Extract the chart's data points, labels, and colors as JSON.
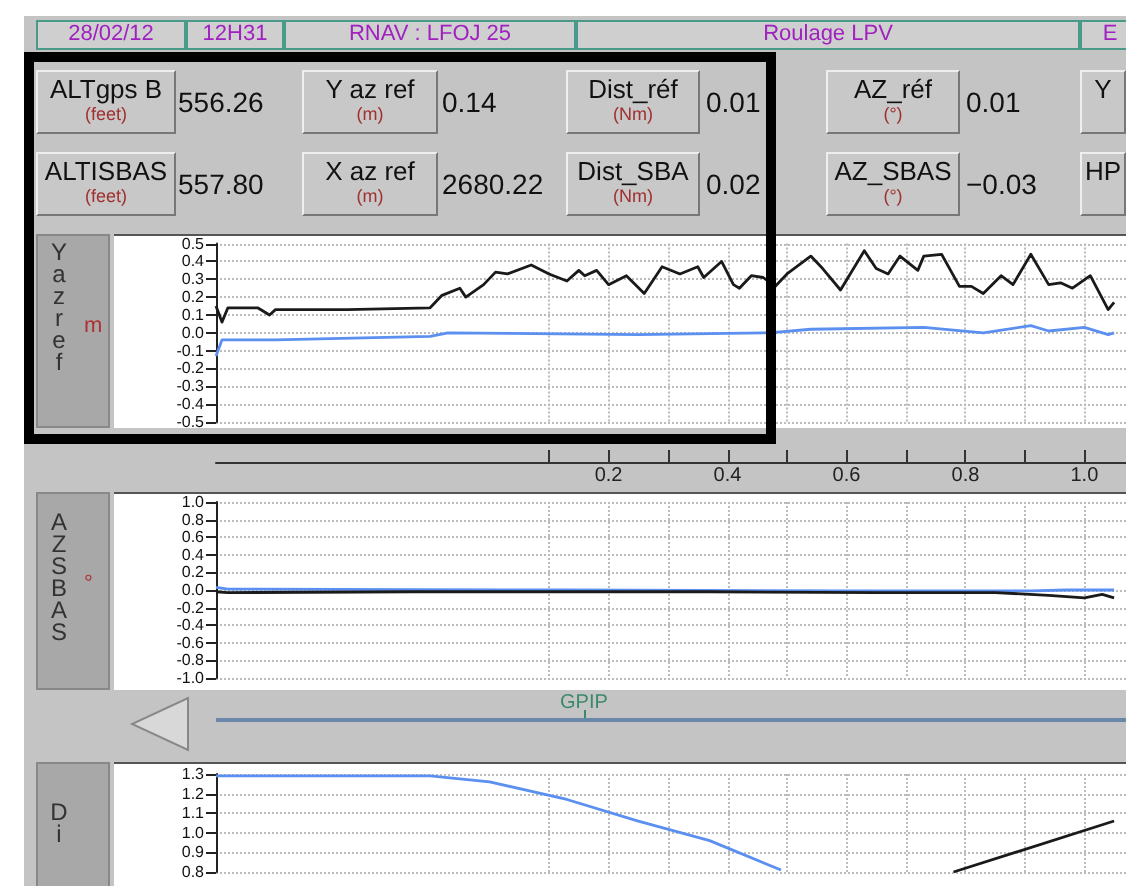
{
  "chart_data": [
    {
      "type": "other",
      "annotations": [
        "28/02/12",
        "12H31",
        "RNAV : LFOJ 25",
        "Roulage LPV",
        "E",
        "ALTgps B",
        "(feet)",
        "556.26",
        "Y az ref",
        "(m)",
        "0.14",
        "Dist_réf",
        "(Nm)",
        "0.01",
        "AZ_réf",
        "(°)",
        "0.01",
        "Y",
        "ALTISBAS",
        "(feet)",
        "557.80",
        "X az ref",
        "(m)",
        "2680.22",
        "Dist_SBA",
        "(Nm)",
        "0.02",
        "AZ_SBAS",
        "(°)",
        "−0.03",
        "HP"
      ]
    },
    {
      "type": "line",
      "ylabel": "Y az ref",
      "annotations": [
        "m"
      ],
      "xlim": [
        -0.46,
        1.07
      ],
      "ylim": [
        -0.5,
        0.5
      ],
      "grid": true,
      "xticks": [
        {
          "value": 0.1,
          "label": null
        },
        0.2,
        {
          "value": 0.3,
          "label": null
        },
        0.4,
        {
          "value": 0.5,
          "label": null
        },
        0.6,
        {
          "value": 0.7,
          "label": null
        },
        0.8,
        {
          "value": 0.9,
          "label": null
        },
        {
          "value": 1,
          "label": "1.0"
        }
      ],
      "yticks": [
        -0.5,
        -0.4,
        -0.3,
        -0.2,
        -0.1,
        {
          "value": 0,
          "label": "0.0"
        },
        0.1,
        0.2,
        0.3,
        0.4,
        0.5
      ],
      "series": [
        {
          "color": "#1a1a1a",
          "x": [
            -0.46,
            -0.45,
            -0.44,
            -0.39,
            -0.37,
            -0.36,
            -0.24,
            -0.1,
            -0.08,
            -0.05,
            -0.04,
            -0.01,
            0.01,
            0.03,
            0.07,
            0.1,
            0.13,
            0.15,
            0.16,
            0.18,
            0.2,
            0.23,
            0.26,
            0.29,
            0.32,
            0.35,
            0.36,
            0.39,
            0.41,
            0.42,
            0.44,
            0.46,
            0.48,
            0.5,
            0.54,
            0.56,
            0.59,
            0.63,
            0.65,
            0.67,
            0.69,
            0.72,
            0.73,
            0.76,
            0.79,
            0.81,
            0.83,
            0.86,
            0.88,
            0.91,
            0.94,
            0.96,
            0.98,
            1.01,
            1.04,
            1.05
          ],
          "values": [
            0.15,
            0.06,
            0.14,
            0.14,
            0.1,
            0.13,
            0.13,
            0.14,
            0.21,
            0.25,
            0.2,
            0.27,
            0.34,
            0.33,
            0.38,
            0.33,
            0.29,
            0.35,
            0.32,
            0.35,
            0.27,
            0.32,
            0.22,
            0.37,
            0.33,
            0.37,
            0.31,
            0.4,
            0.27,
            0.25,
            0.32,
            0.31,
            0.26,
            0.33,
            0.43,
            0.36,
            0.24,
            0.46,
            0.36,
            0.33,
            0.43,
            0.35,
            0.43,
            0.44,
            0.26,
            0.26,
            0.22,
            0.32,
            0.27,
            0.44,
            0.27,
            0.28,
            0.25,
            0.32,
            0.13,
            0.17
          ]
        },
        {
          "color": "#5b8ff0",
          "x": [
            -0.46,
            -0.45,
            -0.36,
            -0.1,
            -0.07,
            0.25,
            0.47,
            0.54,
            0.73,
            0.83,
            0.91,
            0.94,
            1.0,
            1.04,
            1.05
          ],
          "values": [
            -0.13,
            -0.04,
            -0.04,
            -0.02,
            0.0,
            -0.01,
            0.0,
            0.02,
            0.03,
            0.0,
            0.04,
            0.01,
            0.03,
            -0.01,
            0.0
          ]
        }
      ]
    },
    {
      "type": "line",
      "ylabel": "AZ SBAS",
      "annotations": [
        "°",
        "GPIP"
      ],
      "xlim": [
        -0.46,
        1.07
      ],
      "ylim": [
        -1,
        1
      ],
      "grid": true,
      "tick_labels": "y",
      "xticks": [
        0.1,
        0.2,
        0.3,
        0.4,
        0.5,
        0.6,
        0.7,
        0.8,
        0.9,
        1
      ],
      "yticks": [
        {
          "value": -1,
          "label": "-1.0"
        },
        -0.8,
        -0.6,
        -0.4,
        -0.2,
        {
          "value": 0,
          "label": "0.0"
        },
        0.2,
        0.4,
        0.6,
        0.8,
        {
          "value": 1,
          "label": "1.0"
        }
      ],
      "series": [
        {
          "color": "#5b8ff0",
          "x": [
            -0.46,
            -0.44,
            0.13,
            0.61,
            0.91,
            0.97,
            1.05
          ],
          "values": [
            0.03,
            0.01,
            0.0,
            -0.01,
            -0.01,
            0.0,
            0.0
          ]
        },
        {
          "color": "#1a1a1a",
          "x": [
            -0.46,
            -0.44,
            -0.13,
            0.37,
            0.65,
            0.85,
            0.94,
            1.0,
            1.03,
            1.05
          ],
          "values": [
            -0.02,
            -0.03,
            -0.02,
            -0.02,
            -0.03,
            -0.03,
            -0.06,
            -0.09,
            -0.05,
            -0.09
          ]
        }
      ]
    },
    {
      "type": "line",
      "ylabel": "Di",
      "xlim": [
        -0.46,
        1.07
      ],
      "ylim": [
        0.8,
        1.3
      ],
      "grid": true,
      "tick_labels": "y",
      "xticks": [
        0.1,
        0.2,
        0.3,
        0.4,
        0.5,
        0.6,
        0.7,
        0.8,
        0.9,
        1
      ],
      "yticks": [
        0.8,
        0.9,
        {
          "value": 1,
          "label": "1.0"
        },
        1.1,
        1.2,
        1.3
      ],
      "series": [
        {
          "color": "#5b8ff0",
          "x": [
            -0.46,
            -0.1,
            0.0,
            0.13,
            0.25,
            0.37,
            0.49
          ],
          "values": [
            1.29,
            1.29,
            1.26,
            1.17,
            1.06,
            0.96,
            0.81
          ]
        },
        {
          "color": "#1a1a1a",
          "x": [
            0.78,
            1.05
          ],
          "values": [
            0.8,
            1.06
          ]
        }
      ]
    }
  ]
}
